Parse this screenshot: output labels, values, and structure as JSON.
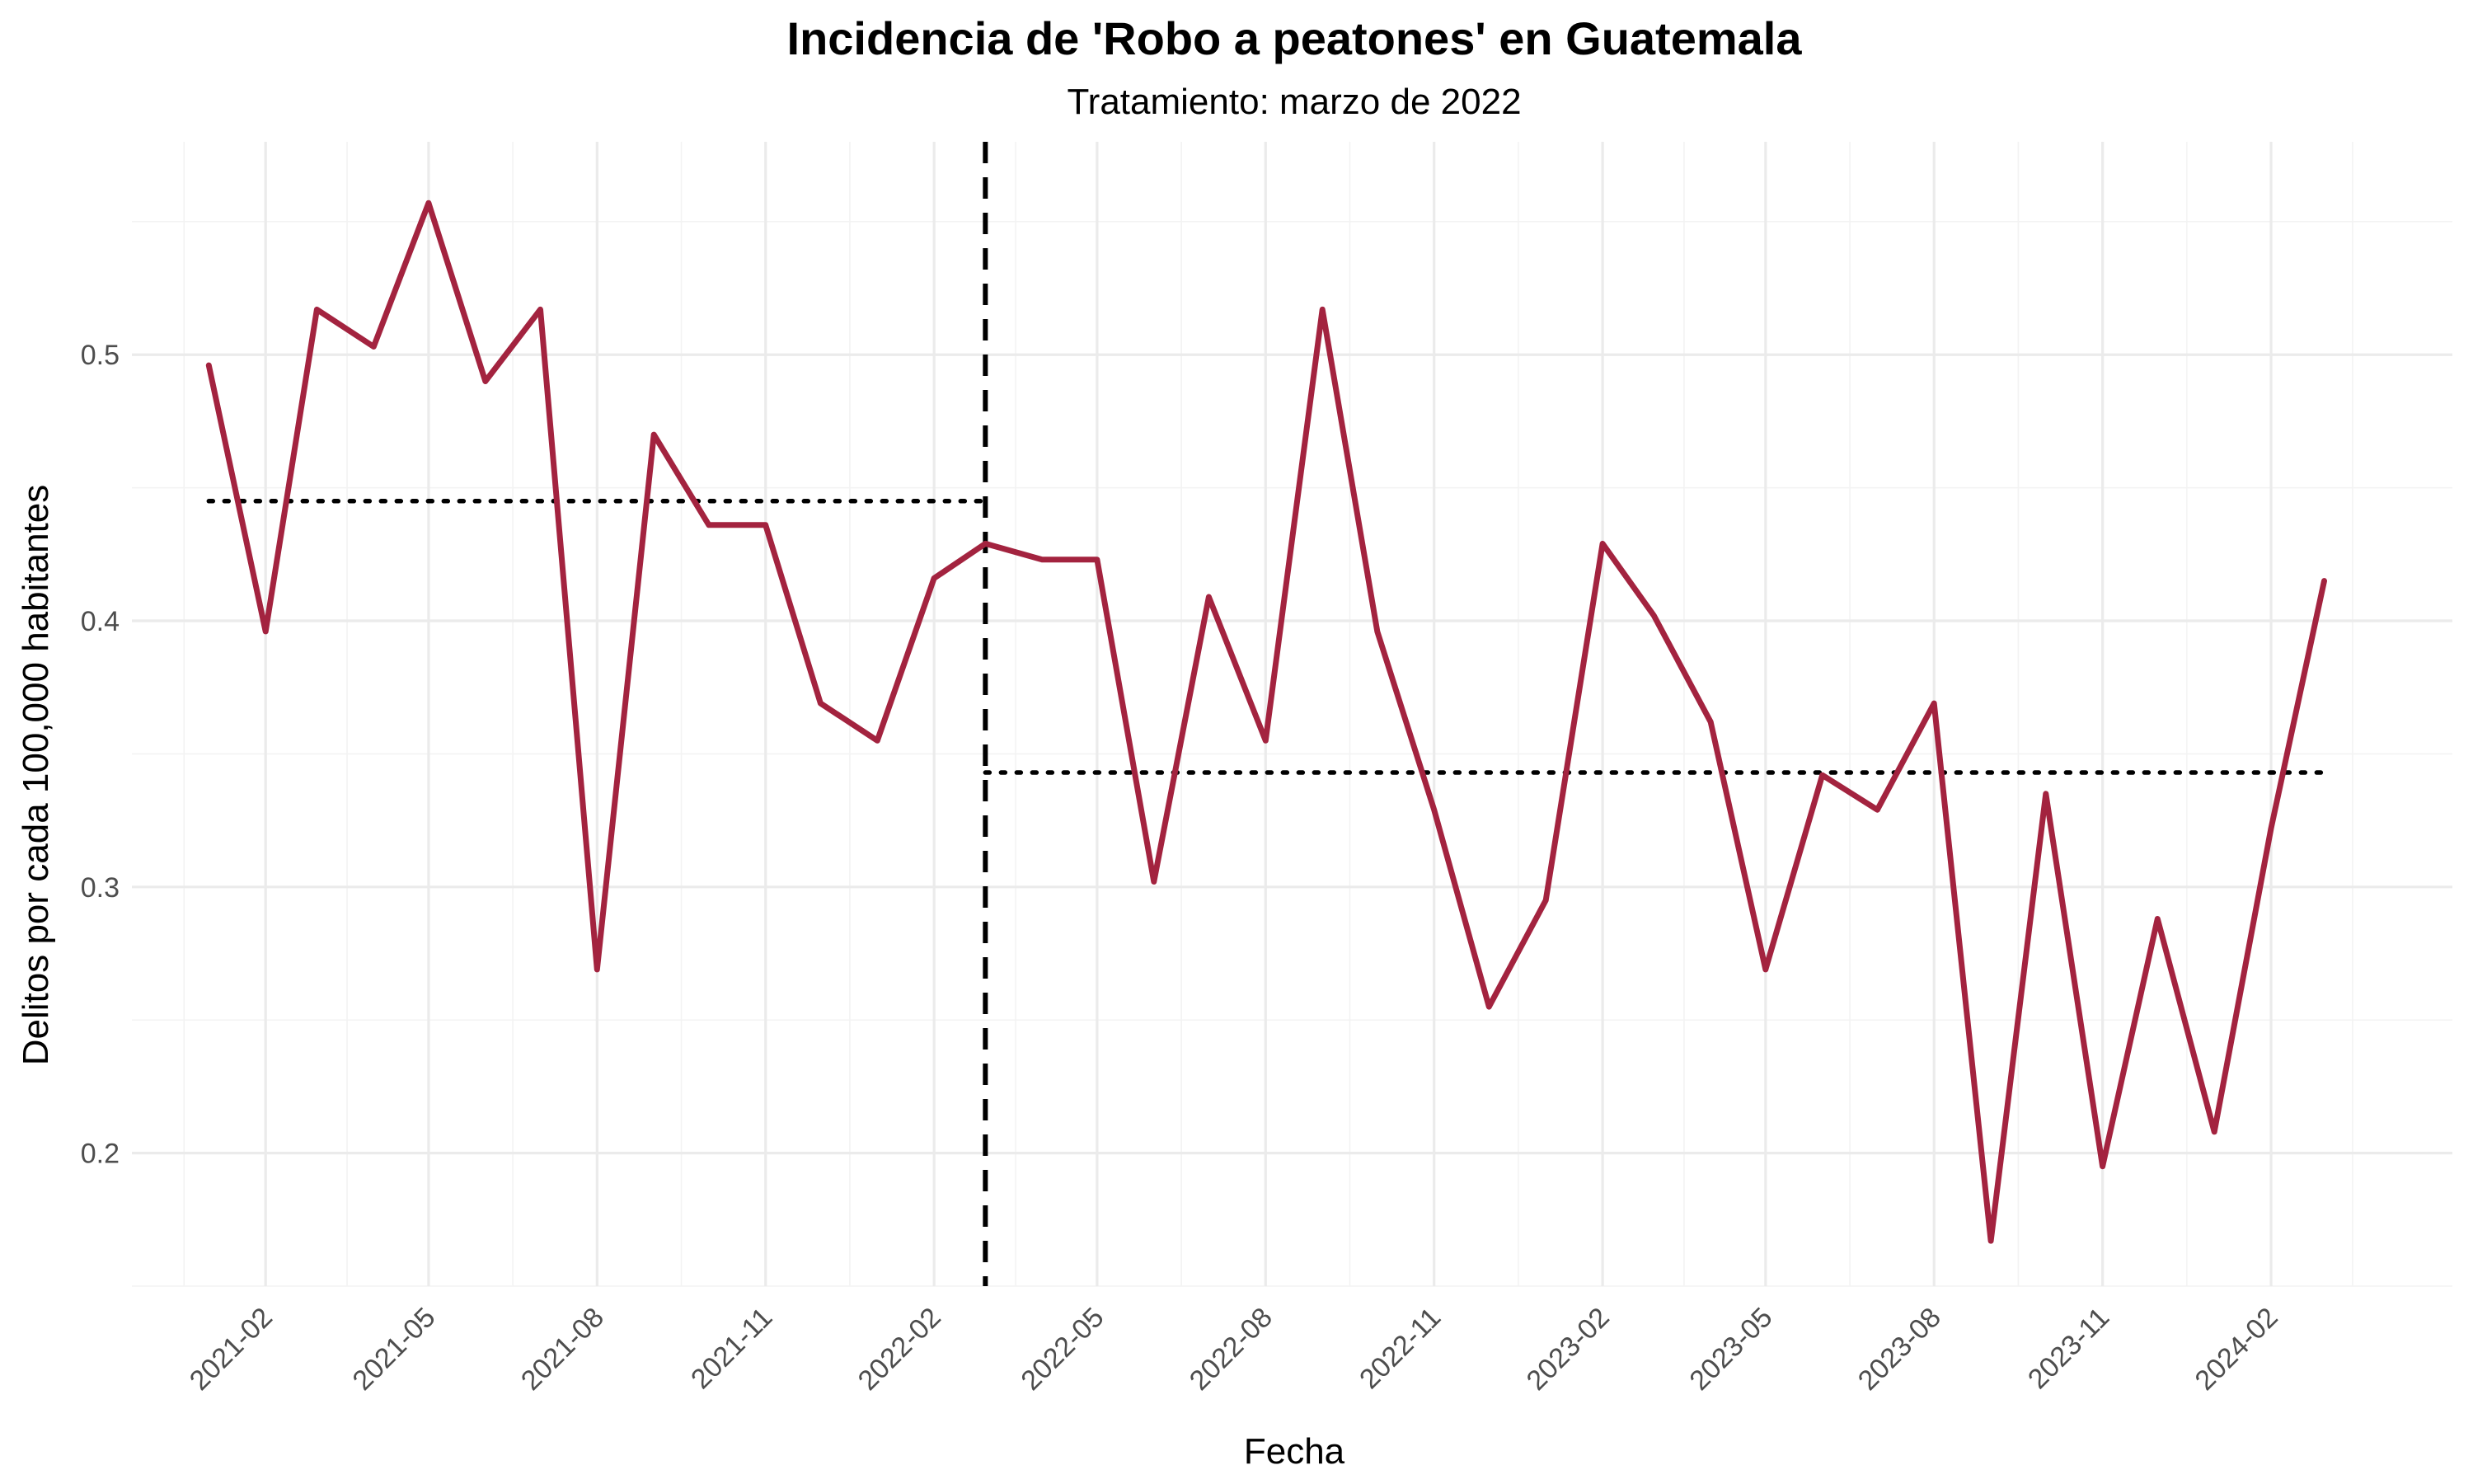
{
  "chart_data": {
    "type": "line",
    "title": "Incidencia de 'Robo a peatones' en Guatemala",
    "subtitle": "Tratamiento: marzo de 2022",
    "xlabel": "Fecha",
    "ylabel": "Delitos por cada 100,000 habitantes",
    "ylim": [
      0.15,
      0.58
    ],
    "xlim": [
      "2020-11-20",
      "2024-05-10"
    ],
    "yticks": [
      0.2,
      0.3,
      0.4,
      0.5
    ],
    "ytick_labels": [
      "0.2",
      "0.3",
      "0.4",
      "0.5"
    ],
    "xticks": [
      "2021-02-01",
      "2021-05-01",
      "2021-08-01",
      "2021-11-01",
      "2022-02-01",
      "2022-05-01",
      "2022-08-01",
      "2022-11-01",
      "2023-02-01",
      "2023-05-01",
      "2023-08-01",
      "2023-11-01",
      "2024-02-01"
    ],
    "xtick_labels": [
      "2021-02",
      "2021-05",
      "2021-08",
      "2021-11",
      "2022-02",
      "2022-05",
      "2022-08",
      "2022-11",
      "2023-02",
      "2023-05",
      "2023-08",
      "2023-11",
      "2024-02"
    ],
    "grid": true,
    "line_color": "#a3233f",
    "series": [
      {
        "x": [
          "2021-01-01",
          "2021-02-01",
          "2021-03-01",
          "2021-04-01",
          "2021-05-01",
          "2021-06-01",
          "2021-07-01",
          "2021-08-01",
          "2021-09-01",
          "2021-10-01",
          "2021-11-01",
          "2021-12-01",
          "2022-01-01",
          "2022-02-01",
          "2022-03-01",
          "2022-04-01",
          "2022-05-01",
          "2022-06-01",
          "2022-07-01",
          "2022-08-01",
          "2022-09-01",
          "2022-10-01",
          "2022-11-01",
          "2022-12-01",
          "2023-01-01",
          "2023-02-01",
          "2023-03-01",
          "2023-04-01",
          "2023-05-01",
          "2023-06-01",
          "2023-07-01",
          "2023-08-01",
          "2023-09-01",
          "2023-10-01",
          "2023-11-01",
          "2023-12-01",
          "2024-01-01",
          "2024-02-01",
          "2024-03-01"
        ],
        "values": [
          0.496,
          0.396,
          0.517,
          0.503,
          0.557,
          0.49,
          0.517,
          0.269,
          0.47,
          0.436,
          0.436,
          0.369,
          0.355,
          0.416,
          0.429,
          0.423,
          0.423,
          0.302,
          0.409,
          0.355,
          0.517,
          0.396,
          0.329,
          0.255,
          0.295,
          0.429,
          0.402,
          0.362,
          0.269,
          0.342,
          0.329,
          0.369,
          0.167,
          0.335,
          0.195,
          0.288,
          0.208,
          0.322,
          0.415
        ]
      }
    ],
    "reference_lines": {
      "treatment_date": "2022-03-01",
      "pre_mean": {
        "value": 0.445,
        "from": "2021-01-01",
        "to": "2022-02-28"
      },
      "post_mean": {
        "value": 0.343,
        "from": "2022-03-01",
        "to": "2024-03-01"
      }
    }
  }
}
